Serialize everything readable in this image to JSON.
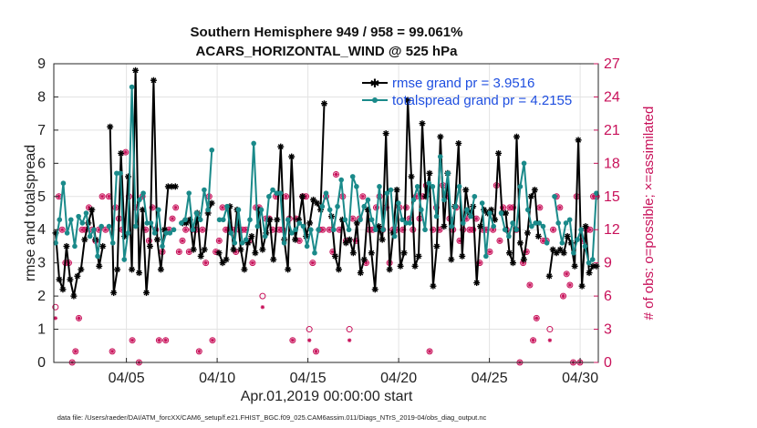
{
  "chart_data": {
    "type": "line",
    "title": "Southern Hemisphere 949 / 958 = 99.061%",
    "subtitle": "ACARS_HORIZONTAL_WIND @ 525 hPa",
    "xlabel": "Apr.01,2019 00:00:00 start",
    "ylabel": "rmse and totalspread",
    "y2label": "# of obs: o=possible; ×=assimilated",
    "footnote": "data file: /Users/raeder/DAI/ATM_forcXX/CAM6_setup/f.e21.FHIST_BGC.f09_025.CAM6assim.011/Diags_NTrS_2019-04/obs_diag_output.nc",
    "xlim": [
      1,
      31
    ],
    "ylim": [
      0,
      9
    ],
    "y2lim": [
      0,
      27
    ],
    "x_tick_values": [
      5,
      10,
      15,
      20,
      25,
      30
    ],
    "x_tick_labels": [
      "04/05",
      "04/10",
      "04/15",
      "04/20",
      "04/25",
      "04/30"
    ],
    "y_ticks": [
      "0",
      "1",
      "2",
      "3",
      "4",
      "5",
      "6",
      "7",
      "8",
      "9"
    ],
    "y2_ticks": [
      "0",
      "3",
      "6",
      "9",
      "12",
      "15",
      "18",
      "21",
      "24",
      "27"
    ],
    "colors": {
      "rmse": "#000000",
      "spread": "#1a8a8a",
      "obs": "#c8115a",
      "legend_text": "#1f4fe0"
    },
    "series": [
      {
        "name": "rmse grand pr = 3.9516",
        "values": [
          3.9,
          2.5,
          2.2,
          3.5,
          2.5,
          2.0,
          2.6,
          2.8,
          3.7,
          4.2,
          4.6,
          3.7,
          2.9,
          3.5,
          null,
          7.1,
          2.1,
          2.8,
          6.3,
          3.8,
          5.6,
          2.8,
          8.8,
          2.7,
          4.6,
          2.1,
          3.5,
          8.5,
          3.7,
          2.8,
          4.0,
          5.3,
          5.3,
          5.3,
          null,
          4.2,
          4.2,
          4.3,
          3.4,
          4.5,
          3.2,
          3.4,
          4.5,
          4.8,
          null,
          3.3,
          3.0,
          3.1,
          4.7,
          3.4,
          4.6,
          3.4,
          2.8,
          3.6,
          3.8,
          3.3,
          4.6,
          3.4,
          3.9,
          4.3,
          3.1,
          4.3,
          6.5,
          3.7,
          2.8,
          6.2,
          3.7,
          4.3,
          5.0,
          3.8,
          4.2,
          4.9,
          4.8,
          4.6,
          7.8,
          null,
          4.4,
          3.2,
          2.8,
          4.3,
          3.6,
          3.7,
          3.3,
          4.2,
          2.7,
          3.1,
          4.6,
          3.3,
          2.2,
          4.1,
          3.7,
          6.9,
          2.8,
          3.9,
          5.2,
          2.9,
          3.3,
          7.9,
          5.6,
          2.9,
          3.2,
          7.2,
          5.0,
          5.7,
          2.3,
          3.5,
          6.8,
          4.1,
          5.7,
          3.1,
          4.7,
          6.6,
          3.2,
          5.2,
          4.5,
          4.7,
          2.4,
          4.1,
          4.6,
          4.5,
          4.6,
          4.3,
          6.3,
          4.5,
          4.5,
          3.3,
          3.0,
          6.8,
          3.6,
          3.1,
          3.9,
          5.0,
          5.2,
          3.8,
          null,
          null,
          2.6,
          3.4,
          3.3,
          3.4,
          3.3,
          3.8,
          3.6,
          2.9,
          6.7,
          2.3,
          4.1,
          2.7,
          2.9,
          2.9
        ]
      },
      {
        "name": "totalspread grand pr = 4.2155",
        "values": [
          3.6,
          4.3,
          5.4,
          3.9,
          4.3,
          3.5,
          4.4,
          4.2,
          4.5,
          3.8,
          4.0,
          3.2,
          4.1,
          null,
          4.1,
          3.6,
          5.7,
          5.7,
          3.1,
          3.9,
          8.3,
          4.1,
          4.9,
          5.1,
          4.2,
          4.2,
          3.9,
          4.6,
          3.5,
          3.9,
          3.9,
          4.0,
          null,
          4.2,
          4.3,
          5.1,
          4.0,
          4.5,
          4.3,
          5.2,
          4.6,
          6.4,
          null,
          4.3,
          4.3,
          4.7,
          3.9,
          3.6,
          4.6,
          3.6,
          3.7,
          4.3,
          6.6,
          4.1,
          4.6,
          3.8,
          5.0,
          5.2,
          5.1,
          5.1,
          3.6,
          4.3,
          3.9,
          4.0,
          4.2,
          4.1,
          3.5,
          4.0,
          3.3,
          4.0,
          4.7,
          5.1,
          4.6,
          4.0,
          4.7,
          5.5,
          4.3,
          4.0,
          5.6,
          5.3,
          4.3,
          4.7,
          4.9,
          4.3,
          4.0,
          5.3,
          4.0,
          5.1,
          5.2,
          3.8,
          4.8,
          4.3,
          4.2,
          4.2,
          4.9,
          5.3,
          4.6,
          4.0,
          5.4,
          5.3,
          4.4,
          6.2,
          4.9,
          5.7,
          4.1,
          4.7,
          5.3,
          4.2,
          4.6,
          4.4,
          5.0,
          null,
          4.8,
          3.2,
          4.5,
          4.1,
          null,
          4.5,
          4.0,
          3.8,
          4.2,
          4.0,
          5.3,
          6.0,
          4.6,
          4.1,
          4.2,
          4.2,
          4.1,
          3.6,
          null,
          5.0,
          4.2,
          3.6,
          4.2,
          4.3,
          3.3,
          3.7,
          4.0,
          3.5,
          3.0,
          3.1,
          5.1
        ]
      }
    ],
    "obs_possible": [
      5,
      15,
      12,
      9,
      9,
      0,
      1,
      4,
      12,
      12,
      14,
      12,
      11,
      12,
      15,
      12,
      15,
      1,
      14,
      13,
      12,
      19,
      15,
      2,
      14,
      0,
      15,
      12,
      11,
      14,
      12,
      2,
      10,
      2,
      12,
      13,
      14,
      10,
      11,
      12,
      10,
      12,
      12,
      1,
      12,
      9,
      15,
      2,
      10,
      11,
      14,
      12,
      12,
      12,
      10,
      12,
      12,
      12,
      11,
      9,
      14,
      14,
      6,
      13,
      13,
      12,
      15,
      12,
      12,
      15,
      13,
      2,
      13,
      11,
      15,
      15,
      3,
      9,
      1,
      12,
      12,
      15,
      12,
      10,
      17,
      12,
      15,
      11,
      3,
      13,
      11,
      13,
      15,
      9,
      12,
      12,
      14,
      15,
      12,
      14,
      9,
      12,
      12,
      14,
      12,
      14,
      13,
      12,
      15,
      13,
      15,
      16,
      1,
      12,
      14,
      12,
      16,
      15,
      13,
      12,
      14,
      11,
      12,
      13,
      12,
      12,
      13,
      9,
      12,
      12,
      10,
      12,
      16,
      11,
      14,
      12,
      14,
      14,
      12,
      0,
      9,
      10,
      7,
      2,
      4,
      14,
      11,
      11,
      3,
      12,
      15,
      14,
      6,
      8,
      7,
      0,
      15,
      0,
      11,
      12,
      12,
      15,
      15
    ],
    "obs_assimilated": [
      4,
      15,
      12,
      9,
      9,
      0,
      1,
      4,
      12,
      12,
      14,
      12,
      11,
      12,
      15,
      12,
      15,
      1,
      14,
      13,
      12,
      19,
      15,
      2,
      14,
      0,
      15,
      12,
      11,
      14,
      12,
      2,
      10,
      2,
      12,
      13,
      14,
      10,
      11,
      12,
      10,
      12,
      12,
      1,
      12,
      9,
      15,
      2,
      10,
      11,
      14,
      12,
      12,
      12,
      10,
      12,
      12,
      12,
      11,
      9,
      14,
      14,
      5,
      13,
      13,
      12,
      15,
      12,
      12,
      15,
      13,
      2,
      13,
      11,
      15,
      15,
      2,
      9,
      1,
      12,
      12,
      15,
      12,
      10,
      17,
      12,
      15,
      11,
      2,
      13,
      11,
      13,
      15,
      9,
      12,
      12,
      14,
      15,
      12,
      14,
      9,
      12,
      12,
      14,
      12,
      14,
      13,
      12,
      15,
      13,
      15,
      16,
      1,
      12,
      14,
      12,
      16,
      15,
      13,
      12,
      14,
      11,
      12,
      13,
      12,
      12,
      13,
      9,
      12,
      12,
      10,
      12,
      16,
      11,
      14,
      12,
      14,
      14,
      12,
      0,
      9,
      10,
      7,
      2,
      4,
      14,
      11,
      11,
      2,
      12,
      15,
      14,
      6,
      8,
      7,
      0,
      15,
      0,
      11,
      12,
      12,
      15,
      15
    ]
  }
}
